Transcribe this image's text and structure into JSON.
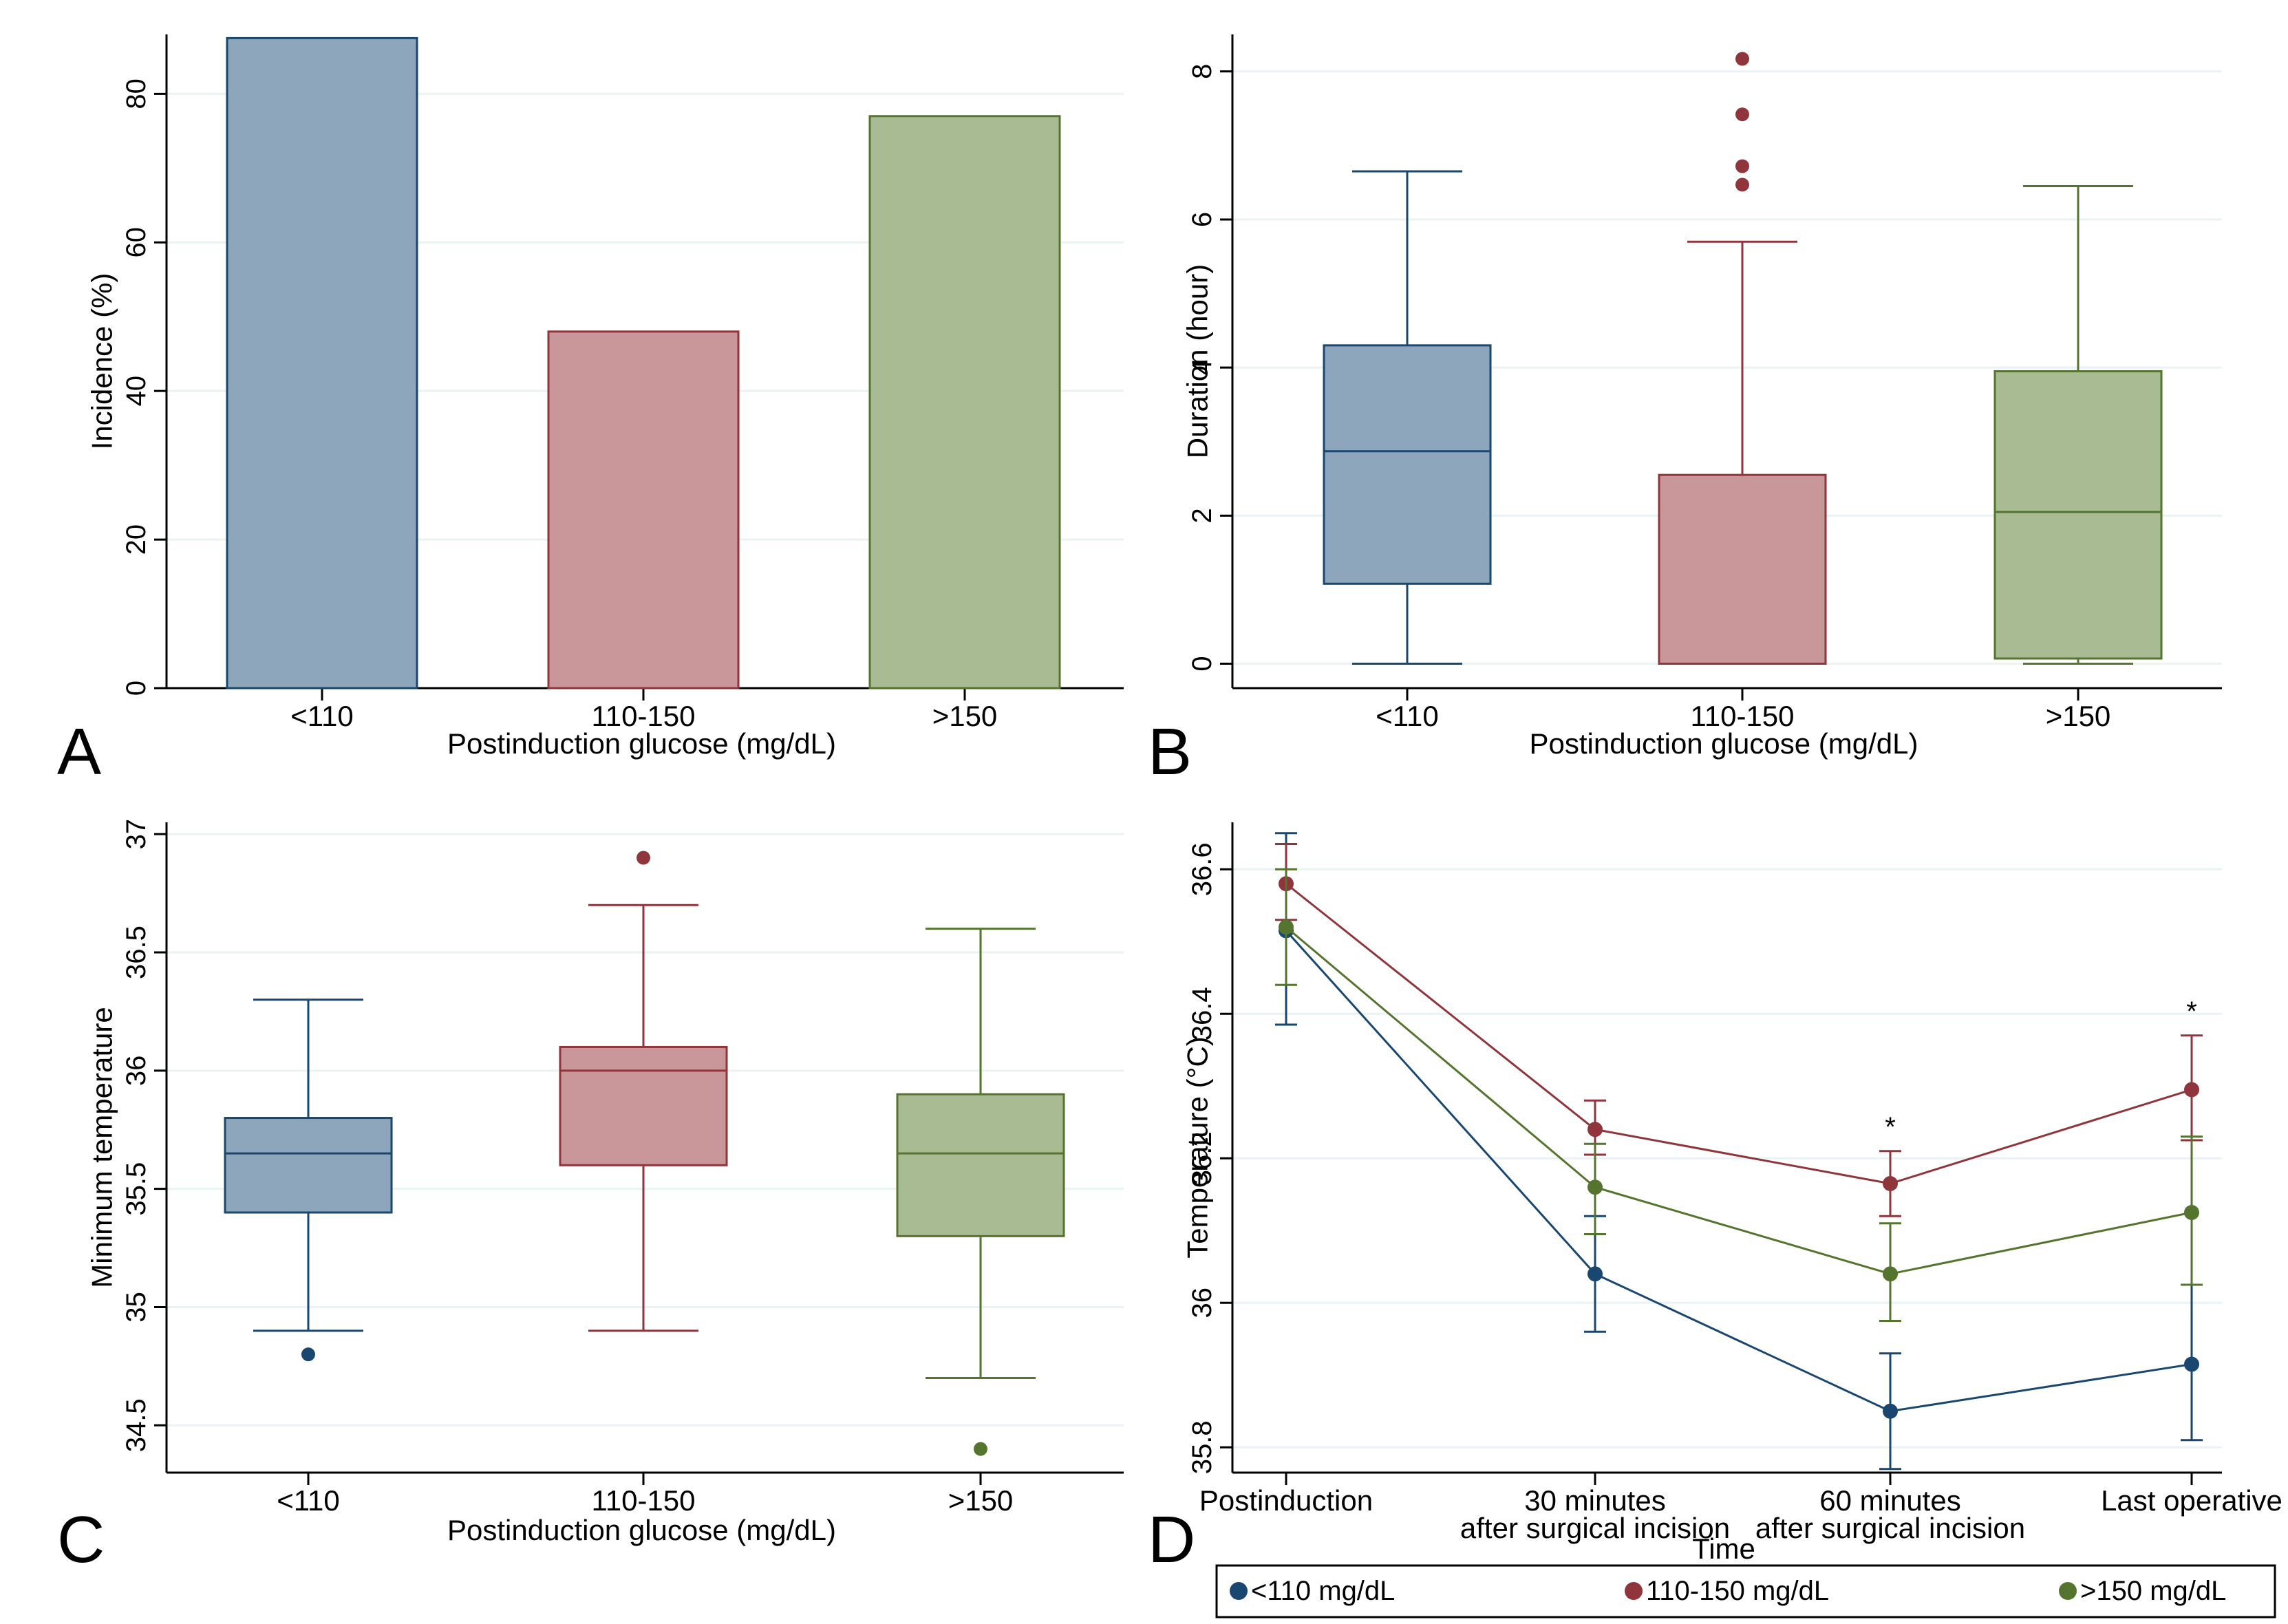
{
  "colors": {
    "blue_fill": "#8ea6bb",
    "blue_line": "#1a476f",
    "red_fill": "#c9969a",
    "red_line": "#90353b",
    "green_fill": "#a9bb93",
    "green_line": "#55752f",
    "grid": "#eaf2f3",
    "axis": "#000000"
  },
  "chart_data": [
    {
      "panel_label": "A",
      "type": "bar",
      "title": "",
      "xlabel": "Postinduction glucose (mg/dL)",
      "ylabel": "Incidence (%)",
      "categories": [
        "<110",
        "110-150",
        ">150"
      ],
      "values": [
        87.5,
        48,
        77
      ],
      "ylim": [
        0,
        88
      ],
      "yticks": [
        0,
        20,
        40,
        60,
        80
      ],
      "ytick_labels": [
        "0",
        "20",
        "40",
        "60",
        "80"
      ],
      "grid": true
    },
    {
      "panel_label": "B",
      "type": "box",
      "title": "",
      "xlabel": "Postinduction glucose (mg/dL)",
      "ylabel": "Duration (hour)",
      "categories": [
        "<110",
        "110-150",
        ">150"
      ],
      "boxes": [
        {
          "min": 0,
          "q1": 1.08,
          "median": 2.87,
          "q3": 4.3,
          "max": 6.65,
          "outliers": []
        },
        {
          "min": 0,
          "q1": 0,
          "median": 0,
          "q3": 2.55,
          "max": 5.7,
          "outliers": [
            6.47,
            6.72,
            7.42,
            8.17
          ]
        },
        {
          "min": 0,
          "q1": 0.07,
          "median": 2.05,
          "q3": 3.95,
          "max": 6.45,
          "outliers": []
        }
      ],
      "ylim": [
        -0.33,
        8.5
      ],
      "yticks": [
        0,
        2,
        4,
        6,
        8
      ],
      "ytick_labels": [
        "0",
        "2",
        "4",
        "6",
        "8"
      ],
      "grid": true
    },
    {
      "panel_label": "C",
      "type": "box",
      "title": "",
      "xlabel": "Postinduction glucose (mg/dL)",
      "ylabel": "Minimum temperature",
      "categories": [
        "<110",
        "110-150",
        ">150"
      ],
      "boxes": [
        {
          "min": 34.9,
          "q1": 35.4,
          "median": 35.65,
          "q3": 35.8,
          "max": 36.3,
          "outliers": [
            34.8
          ]
        },
        {
          "min": 34.9,
          "q1": 35.6,
          "median": 36.0,
          "q3": 36.1,
          "max": 36.7,
          "outliers": [
            36.9
          ]
        },
        {
          "min": 34.7,
          "q1": 35.3,
          "median": 35.65,
          "q3": 35.9,
          "max": 36.6,
          "outliers": [
            34.4
          ]
        }
      ],
      "ylim": [
        34.3,
        37.05
      ],
      "yticks": [
        34.5,
        35,
        35.5,
        36,
        36.5,
        37
      ],
      "ytick_labels": [
        "34.5",
        "35",
        "35.5",
        "36",
        "36.5",
        "37"
      ],
      "grid": true
    },
    {
      "panel_label": "D",
      "type": "line",
      "title": "",
      "xlabel": "Time",
      "ylabel": "Temperature (°C)",
      "categories": [
        "Postinduction",
        "30 minutes\nafter surgical incision",
        "60 minutes\nafter surgical incision",
        "Last operative"
      ],
      "series": [
        {
          "name": "<110 mg/dL",
          "values": [
            36.515,
            36.04,
            35.85,
            35.915
          ],
          "lower": [
            36.385,
            35.96,
            35.77,
            35.81
          ],
          "upper": [
            36.65,
            36.12,
            35.93,
            36.025
          ]
        },
        {
          "name": "110-150 mg/dL",
          "values": [
            36.58,
            36.24,
            36.165,
            36.295
          ],
          "lower": [
            36.53,
            36.205,
            36.12,
            36.225
          ],
          "upper": [
            36.635,
            36.28,
            36.21,
            36.37
          ]
        },
        {
          "name": ">150 mg/dL",
          "values": [
            36.52,
            36.16,
            36.04,
            36.125
          ],
          "lower": [
            36.44,
            36.095,
            35.975,
            36.025
          ],
          "upper": [
            36.6,
            36.22,
            36.11,
            36.23
          ]
        }
      ],
      "significance": [
        "",
        "",
        "*",
        "*"
      ],
      "ylim": [
        35.765,
        36.665
      ],
      "yticks": [
        35.8,
        36,
        36.2,
        36.4,
        36.6
      ],
      "ytick_labels": [
        "35.8",
        "36",
        "36.2",
        "36.4",
        "36.6"
      ],
      "legend": "bottom",
      "grid": true
    }
  ]
}
